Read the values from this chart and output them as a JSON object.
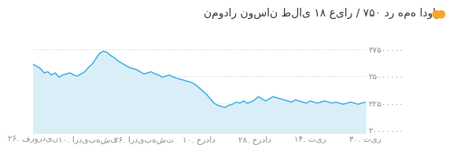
{
  "title": "نمودار نوسان طلای ۱۸ عیار / ۷۵۰ در همه ادوار",
  "title_dot_color": "#f5a623",
  "line_color": "#29abe2",
  "fill_color": "#daeef8",
  "background_color": "#ffffff",
  "grid_color": "#cccccc",
  "ytick_labels": [
    "۲۰۰۰۰۰۰۰",
    "۲۲۵۰۰۰۰۰",
    "۲۵۰۰۰۰۰۰",
    "۲۷۵۰۰۰۰۰"
  ],
  "ytick_values": [
    200000000,
    225000000,
    250000000,
    275000000
  ],
  "xtick_labels": [
    "۲۶. فروردین",
    "۱۰. اردیبهشت",
    "۲۶. اردیبهشت",
    "۱۰. خرداد",
    "۲۸. خرداد",
    "۱۴. تیر",
    "۳۰. تیر"
  ],
  "ylim": [
    197000000,
    285000000
  ],
  "text_color": "#888888",
  "font_size_title": 10,
  "font_size_tick": 7.5,
  "y_values": [
    261000000,
    259000000,
    257000000,
    253000000,
    254000000,
    251000000,
    253000000,
    249000000,
    251000000,
    252000000,
    253000000,
    251000000,
    250000000,
    252000000,
    254000000,
    258000000,
    261000000,
    266000000,
    271000000,
    273000000,
    272000000,
    269000000,
    267000000,
    264000000,
    262000000,
    260000000,
    258000000,
    257000000,
    256000000,
    254000000,
    252000000,
    253000000,
    254000000,
    252000000,
    251000000,
    249000000,
    250000000,
    251000000,
    249000000,
    248000000,
    247000000,
    246000000,
    245000000,
    244000000,
    242000000,
    239000000,
    236000000,
    233000000,
    229000000,
    225000000,
    223000000,
    222000000,
    221000000,
    223000000,
    224000000,
    226000000,
    225000000,
    227000000,
    225000000,
    226000000,
    228000000,
    231000000,
    229000000,
    227000000,
    229000000,
    231000000,
    230000000,
    229000000,
    228000000,
    227000000,
    226000000,
    228000000,
    227000000,
    226000000,
    225000000,
    227000000,
    226000000,
    225000000,
    226000000,
    227000000,
    226000000,
    225000000,
    226000000,
    225000000,
    224000000,
    225000000,
    226000000,
    225000000,
    224000000,
    225000000,
    226000000
  ]
}
